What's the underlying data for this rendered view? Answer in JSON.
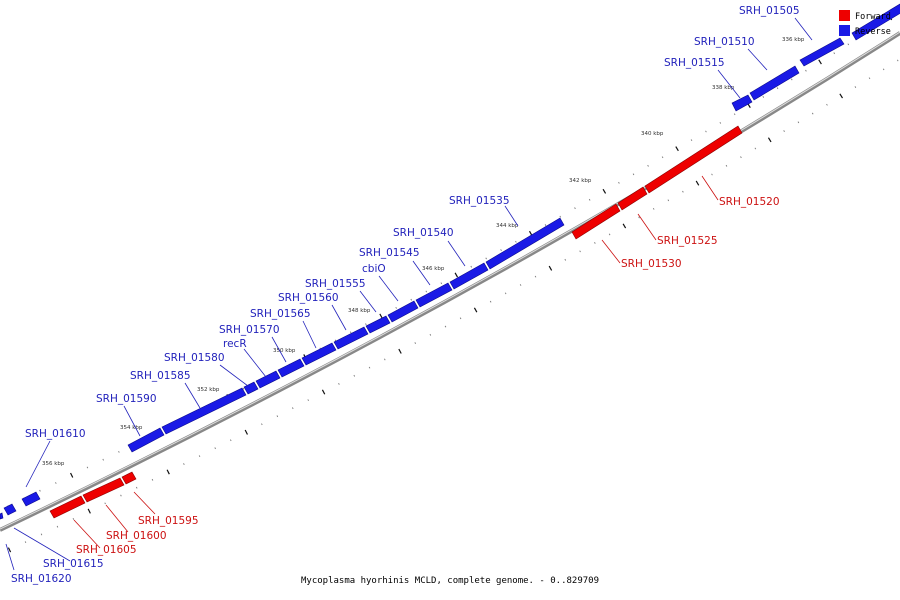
{
  "title": "Mycoplasma hyorhinis MCLD, complete genome. - 0..829709",
  "legend": [
    {
      "label": "Forward",
      "color": "#ee0000"
    },
    {
      "label": "Reverse",
      "color": "#1a1ae6"
    }
  ],
  "ticks": [
    "336 kbp",
    "338 kbp",
    "340 kbp",
    "342 kbp",
    "344 kbp",
    "346 kbp",
    "348 kbp",
    "350 kbp",
    "352 kbp",
    "354 kbp",
    "356 kbp"
  ],
  "genes_reverse": [
    "SRH_01505",
    "SRH_01510",
    "SRH_01515",
    "SRH_01535",
    "SRH_01540",
    "SRH_01545",
    "cbiO",
    "SRH_01555",
    "SRH_01560",
    "SRH_01565",
    "SRH_01570",
    "recR",
    "SRH_01580",
    "SRH_01585",
    "SRH_01590",
    "SRH_01610",
    "SRH_01615",
    "SRH_01620"
  ],
  "genes_forward": [
    "SRH_01520",
    "SRH_01525",
    "SRH_01530",
    "SRH_01595",
    "SRH_01600",
    "SRH_01605"
  ]
}
